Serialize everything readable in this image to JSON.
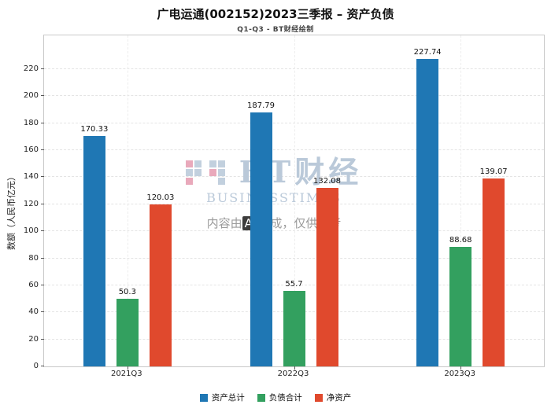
{
  "header": {
    "title": "广电运通(002152)2023三季报 – 资产负债",
    "subtitle": "Q1-Q3 - BT财经绘制"
  },
  "chart_data": {
    "type": "bar",
    "categories": [
      "2021Q3",
      "2022Q3",
      "2023Q3"
    ],
    "series": [
      {
        "name": "资产总计",
        "color": "#1f77b4",
        "values": [
          170.33,
          187.79,
          227.74
        ]
      },
      {
        "name": "负债合计",
        "color": "#33a05f",
        "values": [
          50.3,
          55.7,
          88.68
        ]
      },
      {
        "name": "净资产",
        "color": "#e0492d",
        "values": [
          120.03,
          132.08,
          139.07
        ]
      }
    ],
    "title": "广电运通(002152)2023三季报 – 资产负债",
    "xlabel": "",
    "ylabel": "数额（人民币亿元）",
    "ylim": [
      0,
      245
    ],
    "yticks": [
      0,
      20,
      40,
      60,
      80,
      100,
      120,
      140,
      160,
      180,
      200,
      220
    ],
    "grid": true,
    "legend_position": "bottom"
  },
  "watermark": {
    "logo_text": "BT财经",
    "logo_sub": "BUSINESSTIMES",
    "disclaimer_prefix": "内容由",
    "disclaimer_ai": "AI",
    "disclaimer_suffix": "生成，仅供参考"
  }
}
